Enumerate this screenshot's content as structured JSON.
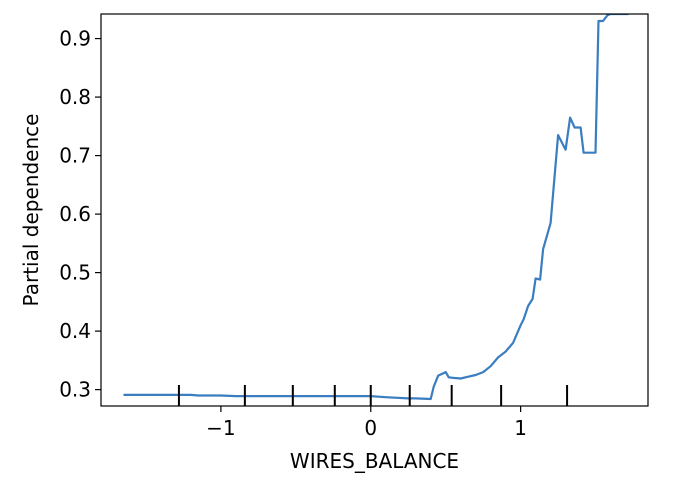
{
  "chart_data": {
    "type": "line",
    "title": "",
    "xlabel": "WIRES_BALANCE",
    "ylabel": "Partial dependence",
    "xlim": [
      -1.8,
      1.85
    ],
    "ylim": [
      0.272,
      0.942
    ],
    "x_ticks": [
      -1,
      0,
      1
    ],
    "x_tick_labels": [
      "−1",
      "0",
      "1"
    ],
    "y_ticks": [
      0.3,
      0.4,
      0.5,
      0.6,
      0.7,
      0.8,
      0.9
    ],
    "y_tick_labels": [
      "0.3",
      "0.4",
      "0.5",
      "0.6",
      "0.7",
      "0.8",
      "0.9"
    ],
    "grid": false,
    "line_color": "#3a7dc0",
    "rug_x": [
      -1.28,
      -0.84,
      -0.52,
      -0.24,
      0.0,
      0.26,
      0.54,
      0.87,
      1.31
    ],
    "series": [
      {
        "x": [
          -1.65,
          -1.4,
          -1.2,
          -1.15,
          -1.0,
          -0.9,
          -0.84,
          -0.6,
          -0.3,
          0.0,
          0.1,
          0.25,
          0.3,
          0.4,
          0.42,
          0.45,
          0.5,
          0.52,
          0.55,
          0.6,
          0.65,
          0.7,
          0.75,
          0.8,
          0.85,
          0.9,
          0.95,
          1.0,
          1.02,
          1.05,
          1.08,
          1.1,
          1.13,
          1.15,
          1.2,
          1.25,
          1.3,
          1.33,
          1.36,
          1.4,
          1.42,
          1.45,
          1.5,
          1.52,
          1.55,
          1.58,
          1.6,
          1.65,
          1.72
        ],
        "values": [
          0.291,
          0.291,
          0.291,
          0.29,
          0.29,
          0.289,
          0.289,
          0.289,
          0.289,
          0.289,
          0.287,
          0.285,
          0.285,
          0.284,
          0.305,
          0.324,
          0.33,
          0.321,
          0.32,
          0.319,
          0.322,
          0.325,
          0.33,
          0.34,
          0.355,
          0.365,
          0.38,
          0.41,
          0.42,
          0.443,
          0.455,
          0.49,
          0.488,
          0.54,
          0.585,
          0.735,
          0.71,
          0.765,
          0.748,
          0.748,
          0.705,
          0.705,
          0.705,
          0.93,
          0.93,
          0.94,
          0.942,
          0.942,
          0.942
        ]
      }
    ]
  }
}
